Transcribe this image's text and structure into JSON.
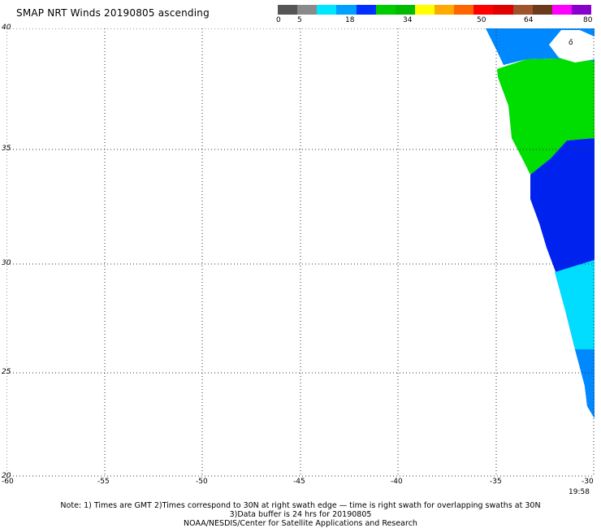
{
  "title": "SMAP NRT Winds 20190805 ascending",
  "colorbar": {
    "labels": [
      "0",
      "5",
      "18",
      "34",
      "50",
      "64",
      "80"
    ],
    "colors": [
      "#555555",
      "#8a8a8a",
      "#00e6ff",
      "#00a0ff",
      "#0030ff",
      "#00cc00",
      "#00bb00",
      "#ffff00",
      "#ffaa00",
      "#ff6600",
      "#ff0000",
      "#e00000",
      "#a0522d",
      "#6b3a1b",
      "#ff00ff",
      "#8800cc"
    ]
  },
  "map": {
    "lat_labels": [
      "40",
      "35",
      "30",
      "25",
      "20"
    ],
    "lon_labels": [
      "-60",
      "-55",
      "-50",
      "-45",
      "-40",
      "-35",
      "-30"
    ],
    "swath_colors": {
      "cyan": "#00ddff",
      "light_blue": "#0088ff",
      "blue": "#0022ee",
      "green": "#00dd00"
    },
    "timestamp": "19:58"
  },
  "notes": {
    "line1": "Note: 1) Times are GMT 2)Times correspond to 30N at right swath edge — time is right swath for overlapping swaths at 30N",
    "line2": "3)Data buffer is 24 hrs for 20190805",
    "line3": "NOAA/NESDIS/Center for Satellite Applications and Research"
  }
}
